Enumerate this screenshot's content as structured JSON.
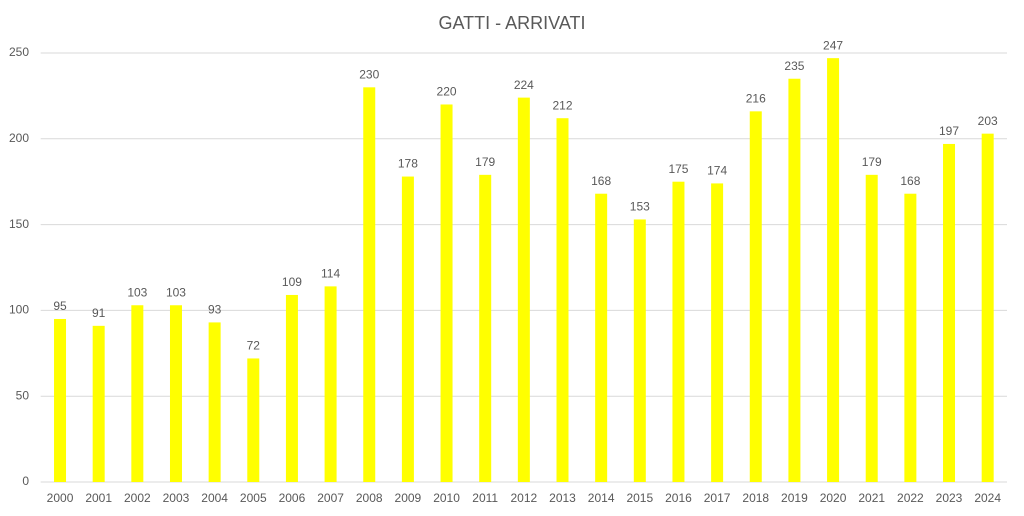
{
  "chart_data": {
    "type": "bar",
    "title": "GATTI - ARRIVATI",
    "categories": [
      "2000",
      "2001",
      "2002",
      "2003",
      "2004",
      "2005",
      "2006",
      "2007",
      "2008",
      "2009",
      "2010",
      "2011",
      "2012",
      "2013",
      "2014",
      "2015",
      "2016",
      "2017",
      "2018",
      "2019",
      "2020",
      "2021",
      "2022",
      "2023",
      "2024"
    ],
    "values": [
      95,
      91,
      103,
      103,
      93,
      72,
      109,
      114,
      230,
      178,
      220,
      179,
      224,
      212,
      168,
      153,
      175,
      174,
      216,
      235,
      247,
      179,
      168,
      197,
      203
    ],
    "color": "#ffff00",
    "ylim": [
      0,
      250
    ],
    "yticks": [
      0,
      50,
      100,
      150,
      200,
      250
    ],
    "grid": true
  }
}
